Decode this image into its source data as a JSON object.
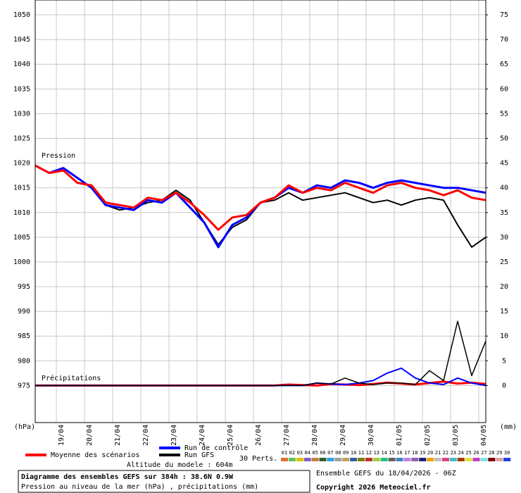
{
  "chart_data": {
    "type": "line",
    "title": "Diagramme des ensembles GEFS sur 384h : 38.6N 0.9W",
    "subtitle": "Pression au niveau de la mer (hPa) , précipitations (mm)",
    "run_info": "Ensemble GEFS du 18/04/2026 - 06Z",
    "copyright": "Copyright 2026 Meteociel.fr",
    "altitude": "Altitude du modele : 604m",
    "pressure_label": "Pression",
    "precip_label": "Précipitations",
    "ylabel": "(hPa)",
    "y2label": "(mm)",
    "perturbations_label": "30 Perts.",
    "perturbations": [
      {
        "name": "01",
        "color": "#e07030"
      },
      {
        "name": "02",
        "color": "#60c060"
      },
      {
        "name": "03",
        "color": "#e0c000"
      },
      {
        "name": "04",
        "color": "#8060c0"
      },
      {
        "name": "05",
        "color": "#c08040"
      },
      {
        "name": "06",
        "color": "#306030"
      },
      {
        "name": "07",
        "color": "#30a0e0"
      },
      {
        "name": "08",
        "color": "#a0a0a0"
      },
      {
        "name": "09",
        "color": "#c0a060"
      },
      {
        "name": "10",
        "color": "#3060a0"
      },
      {
        "name": "11",
        "color": "#808000"
      },
      {
        "name": "12",
        "color": "#c03030"
      },
      {
        "name": "13",
        "color": "#a0d040"
      },
      {
        "name": "14",
        "color": "#20c080"
      },
      {
        "name": "15",
        "color": "#606060"
      },
      {
        "name": "16",
        "color": "#4080c0"
      },
      {
        "name": "17",
        "color": "#c080e0"
      },
      {
        "name": "18",
        "color": "#9060a0"
      },
      {
        "name": "19",
        "color": "#202080"
      },
      {
        "name": "20",
        "color": "#f0a000"
      },
      {
        "name": "21",
        "color": "#c0c0c0"
      },
      {
        "name": "22",
        "color": "#e04080"
      },
      {
        "name": "23",
        "color": "#40c0c0"
      },
      {
        "name": "24",
        "color": "#a04000"
      },
      {
        "name": "25",
        "color": "#e0e040"
      },
      {
        "name": "26",
        "color": "#c040c0"
      },
      {
        "name": "27",
        "color": "#80e0e0"
      },
      {
        "name": "28",
        "color": "#800000"
      },
      {
        "name": "29",
        "color": "#e0a0a0"
      },
      {
        "name": "30",
        "color": "#2040e0"
      }
    ],
    "x": [
      -0.75,
      -0.25,
      0.25,
      0.75,
      1.25,
      1.75,
      2.25,
      2.75,
      3.25,
      3.75,
      4.25,
      4.75,
      5.25,
      5.75,
      6.25,
      6.75,
      7.25,
      7.75,
      8.25,
      8.75,
      9.25,
      9.75,
      10.25,
      10.75,
      11.25,
      11.75,
      12.25,
      12.75,
      13.25,
      13.75,
      14.25,
      14.75,
      15.25
    ],
    "xlim": [
      -0.75,
      15.25
    ],
    "xticks": [
      {
        "value": 0,
        "label": "19/04"
      },
      {
        "value": 1,
        "label": "20/04"
      },
      {
        "value": 2,
        "label": "21/04"
      },
      {
        "value": 3,
        "label": "22/04"
      },
      {
        "value": 4,
        "label": "23/04"
      },
      {
        "value": 5,
        "label": "24/04"
      },
      {
        "value": 6,
        "label": "25/04"
      },
      {
        "value": 7,
        "label": "26/04"
      },
      {
        "value": 8,
        "label": "27/04"
      },
      {
        "value": 9,
        "label": "28/04"
      },
      {
        "value": 10,
        "label": "29/04"
      },
      {
        "value": 11,
        "label": "30/04"
      },
      {
        "value": 12,
        "label": "01/05"
      },
      {
        "value": 13,
        "label": "02/05"
      },
      {
        "value": 14,
        "label": "03/05"
      },
      {
        "value": 15,
        "label": "04/05"
      }
    ],
    "ylim": [
      967.5,
      1053
    ],
    "yticks": [
      975,
      980,
      985,
      990,
      995,
      1000,
      1005,
      1010,
      1015,
      1020,
      1025,
      1030,
      1035,
      1040,
      1045,
      1050
    ],
    "y2lim": [
      -7.5,
      78
    ],
    "y2ticks": [
      0,
      5,
      10,
      15,
      20,
      25,
      30,
      35,
      40,
      45,
      50,
      55,
      60,
      65,
      70,
      75
    ],
    "grid": true,
    "series": [
      {
        "name": "Moyenne des scénarios",
        "color": "#ff0000",
        "width": 3,
        "values": [
          1019.5,
          1018,
          1018.5,
          1016,
          1015.5,
          1012,
          1011.5,
          1011,
          1013,
          1012.5,
          1014,
          1012,
          1009.5,
          1006.5,
          1009,
          1009.5,
          1012,
          1013,
          1015.5,
          1014,
          1015,
          1014.5,
          1016,
          1015,
          1014,
          1015.5,
          1016,
          1015,
          1014.5,
          1013.5,
          1014.5,
          1013,
          1012.5
        ]
      },
      {
        "name": "Run de contrôle",
        "color": "#0000ff",
        "width": 3,
        "values": [
          1019.5,
          1018,
          1019,
          1017,
          1015,
          1011.5,
          1011,
          1010.5,
          1012.5,
          1012,
          1014,
          1011,
          1008,
          1003,
          1007.5,
          1009,
          1012,
          1013,
          1015,
          1014,
          1015.5,
          1015,
          1016.5,
          1016,
          1015,
          1016,
          1016.5,
          1016,
          1015.5,
          1015,
          1015,
          1014.5,
          1014
        ]
      },
      {
        "name": "Run GFS",
        "color": "#000000",
        "width": 2,
        "values": [
          1019.5,
          1018,
          1019,
          1017,
          1015,
          1011.5,
          1010.5,
          1011,
          1012,
          1012.5,
          1014.5,
          1012.5,
          1008,
          1003.5,
          1007,
          1008.5,
          1012,
          1012.5,
          1014,
          1012.5,
          1013,
          1013.5,
          1014,
          1013,
          1012,
          1012.5,
          1011.5,
          1012.5,
          1013,
          1012.5,
          1007.5,
          1003,
          1005
        ]
      }
    ],
    "precip_series": [
      {
        "color": "#ff0000",
        "width": 3,
        "axis": "y2",
        "values": [
          0,
          0,
          0,
          0,
          0,
          0,
          0,
          0,
          0,
          0,
          0,
          0,
          0,
          0,
          0,
          0,
          0,
          0,
          0.2,
          0.1,
          0,
          0.3,
          0.2,
          0.1,
          0.3,
          0.6,
          0.4,
          0.2,
          0.5,
          0.8,
          0.4,
          0.6,
          0.3
        ]
      },
      {
        "color": "#0000ff",
        "width": 2,
        "axis": "y2",
        "values": [
          0,
          0,
          0,
          0,
          0,
          0,
          0,
          0,
          0,
          0,
          0,
          0,
          0,
          0,
          0,
          0,
          0,
          0,
          0,
          0,
          0.5,
          0.3,
          0.2,
          0.5,
          1,
          2.5,
          3.5,
          1.5,
          0.5,
          0.2,
          1.5,
          0.5,
          0
        ]
      },
      {
        "color": "#000000",
        "width": 1.5,
        "axis": "y2",
        "values": [
          0,
          0,
          0,
          0,
          0,
          0,
          0,
          0,
          0,
          0,
          0,
          0,
          0,
          0,
          0,
          0,
          0,
          0,
          0,
          0,
          0.5,
          0.3,
          1.5,
          0.5,
          0.2,
          0.5,
          0.5,
          0.2,
          3,
          1,
          13,
          2,
          9
        ]
      }
    ]
  }
}
